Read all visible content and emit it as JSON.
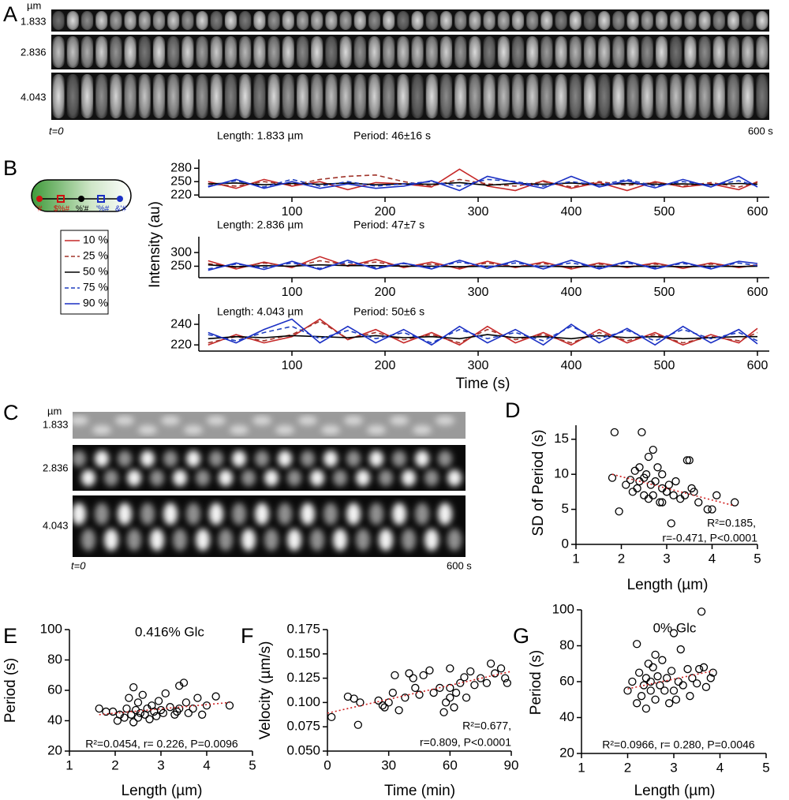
{
  "panels": {
    "A": {
      "letter": "A",
      "unit": "µm",
      "rows": [
        "1.833",
        "2.836",
        "4.043"
      ],
      "start": "t=0",
      "end": "600 s"
    },
    "B": {
      "letter": "B",
      "positions": [
        "'#",
        "$%#",
        "%'#",
        "'%#",
        "&'#"
      ]
    },
    "C": {
      "letter": "C",
      "unit": "µm",
      "rows": [
        "1.833",
        "2.836",
        "4.043"
      ],
      "start": "t=0",
      "end": "600 s"
    },
    "D": {
      "letter": "D"
    },
    "E": {
      "letter": "E"
    },
    "F": {
      "letter": "F"
    },
    "G": {
      "letter": "G"
    }
  },
  "chart_data": [
    {
      "type": "line",
      "title": "Length: 1.833 µm",
      "subtitle": "Period: 46±16 s",
      "x": [
        10,
        40,
        70,
        100,
        130,
        160,
        190,
        220,
        250,
        280,
        310,
        340,
        370,
        400,
        430,
        460,
        490,
        520,
        550,
        580,
        600
      ],
      "xlim": [
        0,
        600
      ],
      "xticks": [
        100,
        200,
        300,
        400,
        500,
        600
      ],
      "ylim": [
        215,
        300
      ],
      "yticks": [
        220,
        250,
        280
      ],
      "series": [
        {
          "name": "10 %",
          "color": "#c62828",
          "dash": false,
          "values": [
            250,
            235,
            255,
            240,
            250,
            232,
            248,
            245,
            238,
            278,
            240,
            230,
            252,
            235,
            248,
            230,
            250,
            238,
            245,
            232,
            250
          ]
        },
        {
          "name": "25 %",
          "color": "#a0342a",
          "dash": true,
          "values": [
            245,
            240,
            250,
            242,
            255,
            262,
            265,
            250,
            240,
            255,
            245,
            240,
            250,
            238,
            250,
            242,
            248,
            240,
            248,
            238,
            248
          ]
        },
        {
          "name": "50 %",
          "color": "#000000",
          "dash": false,
          "values": [
            245,
            247,
            243,
            246,
            244,
            247,
            243,
            245,
            244,
            248,
            242,
            246,
            244,
            247,
            243,
            246,
            244,
            245,
            243,
            246,
            244
          ]
        },
        {
          "name": "75 %",
          "color": "#1f3fbf",
          "dash": true,
          "values": [
            240,
            252,
            238,
            255,
            240,
            250,
            240,
            245,
            250,
            240,
            255,
            250,
            240,
            250,
            242,
            255,
            240,
            250,
            242,
            252,
            240
          ]
        },
        {
          "name": "90 %",
          "color": "#1a2fc4",
          "dash": false,
          "values": [
            238,
            255,
            235,
            250,
            235,
            245,
            235,
            240,
            252,
            230,
            262,
            248,
            235,
            262,
            238,
            252,
            236,
            255,
            238,
            262,
            238
          ]
        }
      ]
    },
    {
      "type": "line",
      "title": "Length: 2.836 µm",
      "subtitle": "Period: 47±7 s",
      "ylabel": "Intensity (au)",
      "x": [
        10,
        40,
        70,
        100,
        130,
        160,
        190,
        220,
        250,
        280,
        310,
        340,
        370,
        400,
        430,
        460,
        490,
        520,
        550,
        580,
        600
      ],
      "xlim": [
        0,
        600
      ],
      "xticks": [
        100,
        200,
        300,
        400,
        500,
        600
      ],
      "ylim": [
        208,
        358
      ],
      "yticks": [
        250,
        300
      ],
      "series": [
        {
          "name": "10 %",
          "color": "#c62828",
          "dash": false,
          "values": [
            270,
            240,
            265,
            245,
            285,
            250,
            275,
            245,
            265,
            240,
            268,
            245,
            265,
            240,
            262,
            245,
            262,
            242,
            262,
            245,
            255
          ]
        },
        {
          "name": "25 %",
          "color": "#a0342a",
          "dash": true,
          "values": [
            260,
            245,
            262,
            248,
            270,
            255,
            265,
            250,
            258,
            245,
            262,
            248,
            260,
            245,
            258,
            248,
            258,
            246,
            258,
            248,
            252
          ]
        },
        {
          "name": "50 %",
          "color": "#000000",
          "dash": false,
          "values": [
            255,
            248,
            252,
            250,
            255,
            252,
            252,
            250,
            250,
            248,
            250,
            249,
            250,
            248,
            250,
            249,
            250,
            248,
            250,
            249,
            250
          ]
        },
        {
          "name": "75 %",
          "color": "#1f3fbf",
          "dash": true,
          "values": [
            240,
            258,
            245,
            262,
            242,
            265,
            245,
            260,
            245,
            265,
            248,
            262,
            248,
            262,
            245,
            262,
            245,
            260,
            245,
            262,
            252
          ]
        },
        {
          "name": "90 %",
          "color": "#1a2fc4",
          "dash": false,
          "values": [
            235,
            262,
            238,
            268,
            238,
            272,
            240,
            262,
            240,
            272,
            242,
            270,
            240,
            272,
            240,
            268,
            240,
            265,
            240,
            268,
            260
          ]
        }
      ]
    },
    {
      "type": "line",
      "title": "Length: 4.043 µm",
      "subtitle": "Period: 50±6 s",
      "xlabel": "Time (s)",
      "x": [
        10,
        40,
        70,
        100,
        130,
        160,
        190,
        220,
        250,
        280,
        310,
        340,
        370,
        400,
        430,
        460,
        490,
        520,
        550,
        580,
        600
      ],
      "xlim": [
        0,
        600
      ],
      "xticks": [
        100,
        200,
        300,
        400,
        500,
        600
      ],
      "ylim": [
        214,
        250
      ],
      "yticks": [
        220,
        240
      ],
      "series": [
        {
          "name": "10 %",
          "color": "#c62828",
          "dash": false,
          "values": [
            220,
            230,
            222,
            228,
            245,
            225,
            235,
            222,
            232,
            220,
            238,
            222,
            232,
            220,
            235,
            222,
            232,
            220,
            230,
            222,
            236
          ]
        },
        {
          "name": "25 %",
          "color": "#a0342a",
          "dash": true,
          "values": [
            222,
            228,
            224,
            230,
            243,
            226,
            232,
            225,
            230,
            222,
            235,
            225,
            230,
            222,
            232,
            224,
            230,
            222,
            228,
            224,
            232
          ]
        },
        {
          "name": "50 %",
          "color": "#000000",
          "dash": false,
          "values": [
            226,
            228,
            227,
            229,
            228,
            227,
            229,
            227,
            228,
            226,
            230,
            227,
            228,
            226,
            229,
            227,
            228,
            226,
            227,
            228,
            228
          ]
        },
        {
          "name": "75 %",
          "color": "#1f3fbf",
          "dash": true,
          "values": [
            230,
            224,
            232,
            238,
            226,
            234,
            226,
            232,
            222,
            235,
            226,
            232,
            224,
            238,
            226,
            234,
            224,
            235,
            226,
            232,
            224
          ]
        },
        {
          "name": "90 %",
          "color": "#1a2fc4",
          "dash": false,
          "values": [
            232,
            222,
            235,
            245,
            222,
            238,
            222,
            235,
            220,
            238,
            222,
            235,
            220,
            240,
            222,
            236,
            220,
            238,
            222,
            235,
            221
          ]
        }
      ]
    },
    {
      "type": "scatter",
      "xlabel": "Length (µm)",
      "ylabel": "SD of Period (s)",
      "annotations": [
        "R²=0.185,",
        "r=-0.471, P<0.0001"
      ],
      "xlim": [
        1,
        5
      ],
      "xticks": [
        1,
        2,
        3,
        4,
        5
      ],
      "ylim": [
        0,
        17
      ],
      "yticks": [
        0,
        5,
        10,
        15
      ],
      "x": [
        1.8,
        1.85,
        1.95,
        2.1,
        2.2,
        2.25,
        2.3,
        2.35,
        2.4,
        2.45,
        2.5,
        2.5,
        2.55,
        2.6,
        2.6,
        2.65,
        2.7,
        2.7,
        2.75,
        2.8,
        2.85,
        2.9,
        2.9,
        3.0,
        3.05,
        3.1,
        3.15,
        3.2,
        3.3,
        3.4,
        3.45,
        3.5,
        3.55,
        3.6,
        3.7,
        3.9,
        4.0,
        4.1,
        4.5,
        2.9,
        2.4,
        3.0
      ],
      "values": [
        9.5,
        16,
        4.7,
        8.5,
        9.2,
        7.5,
        10.5,
        8,
        11,
        16,
        7,
        9.5,
        10,
        6.5,
        12.5,
        8.5,
        13.5,
        7,
        9,
        11,
        6,
        8,
        10,
        7.5,
        8.5,
        3,
        7,
        9,
        6.5,
        7,
        12,
        12,
        8,
        7.5,
        6,
        5,
        5,
        7,
        6,
        6,
        9,
        7.5
      ],
      "trend": {
        "x": [
          1.8,
          4.5
        ],
        "y": [
          10.0,
          5.5
        ],
        "color": "#d02020"
      }
    },
    {
      "type": "scatter",
      "title": "0.416% Glc",
      "xlabel": "Length (µm)",
      "ylabel": "Period (s)",
      "annotations": [
        "R²=0.0454, r= 0.226, P=0.0096"
      ],
      "xlim": [
        1,
        5
      ],
      "xticks": [
        1,
        2,
        3,
        4,
        5
      ],
      "ylim": [
        20,
        100
      ],
      "yticks": [
        20,
        40,
        60,
        80,
        100
      ],
      "x": [
        1.65,
        1.8,
        1.95,
        2.05,
        2.1,
        2.2,
        2.25,
        2.3,
        2.35,
        2.4,
        2.45,
        2.5,
        2.5,
        2.55,
        2.6,
        2.65,
        2.7,
        2.75,
        2.8,
        2.85,
        2.9,
        2.95,
        3.0,
        3.05,
        3.1,
        3.2,
        3.3,
        3.35,
        3.4,
        3.5,
        3.55,
        3.6,
        3.7,
        3.8,
        3.9,
        4.0,
        4.2,
        4.5,
        2.4,
        3.4
      ],
      "values": [
        48,
        46,
        46,
        40,
        44,
        42,
        48,
        55,
        44,
        62,
        47,
        42,
        52,
        45,
        57,
        44,
        48,
        41,
        50,
        46,
        43,
        53,
        47,
        45,
        58,
        49,
        44,
        46,
        63,
        65,
        52,
        45,
        48,
        55,
        44,
        50,
        56,
        50,
        39,
        48
      ],
      "trend": {
        "x": [
          1.65,
          4.5
        ],
        "y": [
          44,
          52
        ],
        "color": "#d02020"
      }
    },
    {
      "type": "scatter",
      "xlabel": "Time (min)",
      "ylabel": "Velocity (µm/s)",
      "annotations": [
        "R²=0.677,",
        "r=0.809, P<0.0001"
      ],
      "xlim": [
        0,
        90
      ],
      "xticks": [
        0,
        30,
        60,
        90
      ],
      "ylim": [
        0.05,
        0.175
      ],
      "yticks": [
        {
          "value": 0.05,
          "label": "0.050"
        },
        0.075,
        {
          "value": 0.1,
          "label": "0.100"
        },
        0.125,
        {
          "value": 0.15,
          "label": "0.150"
        },
        0.175
      ],
      "x": [
        2,
        10,
        13,
        15,
        16,
        25,
        27,
        28,
        30,
        32,
        33,
        35,
        38,
        40,
        42,
        43,
        45,
        47,
        50,
        52,
        55,
        57,
        58,
        60,
        60,
        62,
        63,
        65,
        67,
        68,
        70,
        72,
        75,
        78,
        80,
        82,
        85,
        87,
        88,
        60
      ],
      "values": [
        0.085,
        0.106,
        0.104,
        0.077,
        0.1,
        0.102,
        0.097,
        0.095,
        0.1,
        0.11,
        0.128,
        0.092,
        0.105,
        0.13,
        0.125,
        0.115,
        0.108,
        0.128,
        0.133,
        0.11,
        0.115,
        0.09,
        0.1,
        0.135,
        0.105,
        0.095,
        0.11,
        0.12,
        0.126,
        0.105,
        0.132,
        0.118,
        0.125,
        0.12,
        0.14,
        0.13,
        0.135,
        0.125,
        0.12,
        0.115
      ],
      "trend": {
        "x": [
          0,
          90
        ],
        "y": [
          0.089,
          0.132
        ],
        "color": "#d02020"
      }
    },
    {
      "type": "scatter",
      "title": "0% Glc",
      "xlabel": "Length (µm)",
      "ylabel": "Period (s)",
      "annotations": [
        "R²=0.0966, r= 0.280, P=0.0046"
      ],
      "xlim": [
        1,
        5
      ],
      "xticks": [
        1,
        2,
        3,
        4,
        5
      ],
      "ylim": [
        20,
        100
      ],
      "yticks": [
        20,
        40,
        60,
        80,
        100
      ],
      "x": [
        2.0,
        2.1,
        2.2,
        2.2,
        2.25,
        2.3,
        2.35,
        2.4,
        2.4,
        2.45,
        2.5,
        2.5,
        2.55,
        2.6,
        2.65,
        2.7,
        2.75,
        2.8,
        2.85,
        2.9,
        2.95,
        3.0,
        3.05,
        3.1,
        3.15,
        3.2,
        3.3,
        3.35,
        3.4,
        3.5,
        3.55,
        3.6,
        3.65,
        3.7,
        3.8,
        3.85,
        2.6,
        3.0
      ],
      "values": [
        55,
        60,
        81,
        48,
        65,
        52,
        58,
        62,
        45,
        70,
        55,
        60,
        68,
        50,
        63,
        58,
        72,
        55,
        62,
        48,
        66,
        87,
        50,
        60,
        78,
        58,
        67,
        52,
        62,
        59,
        67,
        99,
        68,
        57,
        62,
        65,
        75,
        55
      ],
      "trend": {
        "x": [
          2.0,
          3.85
        ],
        "y": [
          56,
          66
        ],
        "color": "#d02020"
      }
    }
  ]
}
